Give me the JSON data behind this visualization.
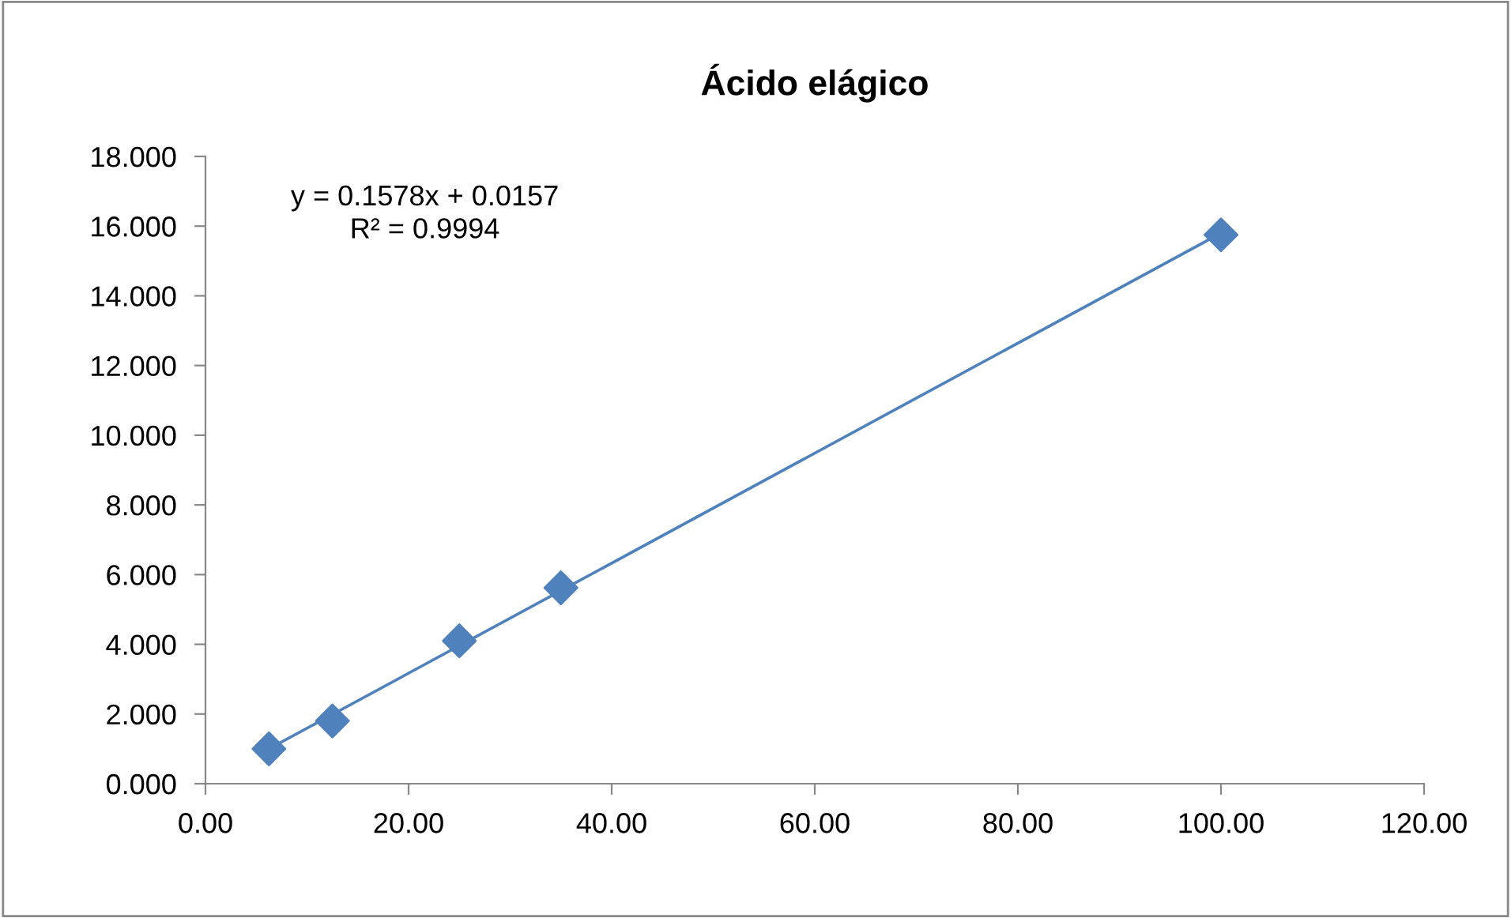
{
  "chart_data": {
    "type": "scatter",
    "title": "Ácido elágico",
    "series": [
      {
        "color": "#4f81bd",
        "marker": "diamond",
        "x": [
          6.25,
          12.5,
          25,
          35,
          100
        ],
        "values": [
          1.0,
          1.8,
          4.1,
          5.62,
          15.75
        ]
      },
      {
        "type": "line",
        "color": "#4f81bd",
        "marker": "none",
        "line_style": "solid",
        "x": [
          6.25,
          100
        ],
        "values": [
          1.0,
          15.8
        ]
      }
    ],
    "xlim": [
      0,
      120
    ],
    "xticks": [
      {
        "value": 0,
        "label": "0.00"
      },
      {
        "value": 20,
        "label": "20.00"
      },
      {
        "value": 40,
        "label": "40.00"
      },
      {
        "value": 60,
        "label": "60.00"
      },
      {
        "value": 80,
        "label": "80.00"
      },
      {
        "value": 100,
        "label": "100.00"
      },
      {
        "value": 120,
        "label": "120.00"
      }
    ],
    "ylim": [
      0,
      18
    ],
    "yticks": [
      {
        "value": 0,
        "label": "0.000"
      },
      {
        "value": 2,
        "label": "2.000"
      },
      {
        "value": 4,
        "label": "4.000"
      },
      {
        "value": 6,
        "label": "6.000"
      },
      {
        "value": 8,
        "label": "8.000"
      },
      {
        "value": 10,
        "label": "10.000"
      },
      {
        "value": 12,
        "label": "12.000"
      },
      {
        "value": 14,
        "label": "14.000"
      },
      {
        "value": 16,
        "label": "16.000"
      },
      {
        "value": 18,
        "label": "18.000"
      }
    ],
    "grid": false,
    "legend": false,
    "annotations": [
      "y = 0.1578x + 0.0157\nR² = 0.9994"
    ]
  }
}
